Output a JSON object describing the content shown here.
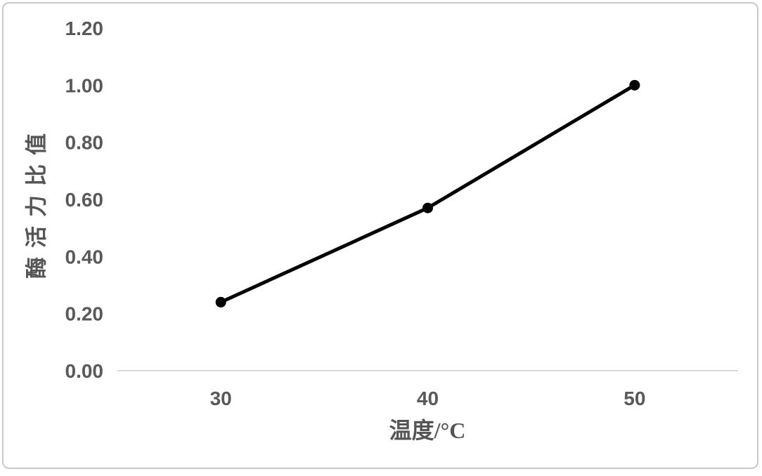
{
  "chart_data": {
    "type": "line",
    "title": "",
    "xlabel": "温度/°C",
    "ylabel": "酶活力比值",
    "categories": [
      "30",
      "40",
      "50"
    ],
    "series": [
      {
        "name": "酶活力比值",
        "values": [
          0.24,
          0.57,
          1.0
        ]
      }
    ],
    "y_ticks": [
      0.0,
      0.2,
      0.4,
      0.6,
      0.8,
      1.0,
      1.2
    ],
    "y_tick_labels": [
      "0.00",
      "0.20",
      "0.40",
      "0.60",
      "0.80",
      "1.00",
      "1.20"
    ],
    "ylim": [
      0,
      1.2
    ],
    "grid": false,
    "legend_position": "none",
    "colors": {
      "line": "#000000",
      "marker": "#000000",
      "axis_line": "#d9d9d9",
      "tick_label": "#595959",
      "axis_title": "#555555",
      "frame_border": "#c9c9c9",
      "background": "#ffffff"
    }
  }
}
